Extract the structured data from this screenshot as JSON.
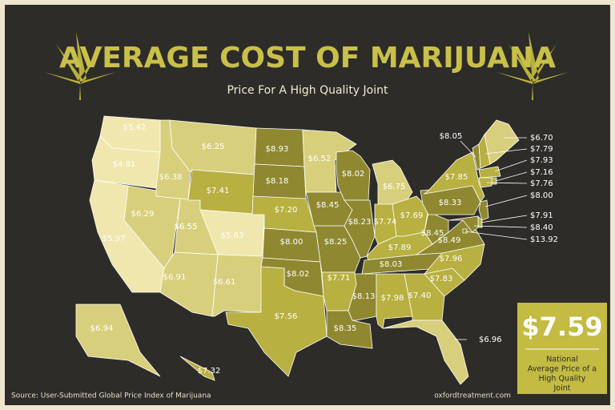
{
  "header": {
    "title": "AVERAGE COST OF MARIJUANA",
    "subtitle": "Price For A High Quality Joint"
  },
  "states": [
    {
      "price": "$5.42",
      "color": "#efe7ad"
    },
    {
      "price": "$4.91",
      "color": "#efe7ad"
    },
    {
      "price": "$5.97",
      "color": "#efe7ad"
    },
    {
      "price": "$6.38",
      "color": "#d8cf7c"
    },
    {
      "price": "$6.29",
      "color": "#d8cf7c"
    },
    {
      "price": "$6.55",
      "color": "#d8cf7c"
    },
    {
      "price": "$6.91",
      "color": "#d8cf7c"
    },
    {
      "price": "$6.25",
      "color": "#d8cf7c"
    },
    {
      "price": "$7.41",
      "color": "#b8b040"
    },
    {
      "price": "$5.63",
      "color": "#efe7ad"
    },
    {
      "price": "$6.61",
      "color": "#d8cf7c"
    },
    {
      "price": "$8.93",
      "color": "#8f8830"
    },
    {
      "price": "$8.18",
      "color": "#8f8830"
    },
    {
      "price": "$7.20",
      "color": "#b8b040"
    },
    {
      "price": "$8.00",
      "color": "#8f8830"
    },
    {
      "price": "$8.02",
      "color": "#8f8830"
    },
    {
      "price": "$7.56",
      "color": "#b8b040"
    },
    {
      "price": "$6.52",
      "color": "#d8cf7c"
    },
    {
      "price": "$8.45",
      "color": "#8f8830"
    },
    {
      "price": "$8.25",
      "color": "#8f8830"
    },
    {
      "price": "$7.71",
      "color": "#b8b040"
    },
    {
      "price": "$8.35",
      "color": "#8f8830"
    },
    {
      "price": "$8.02",
      "color": "#8f8830"
    },
    {
      "price": "$8.23",
      "color": "#8f8830"
    },
    {
      "price": "$6.75",
      "color": "#d8cf7c"
    },
    {
      "price": "$7.74",
      "color": "#b8b040"
    },
    {
      "price": "$7.69",
      "color": "#b8b040"
    },
    {
      "price": "$7.89",
      "color": "#b8b040"
    },
    {
      "price": "$8.03",
      "color": "#8f8830"
    },
    {
      "price": "$8.13",
      "color": "#8f8830"
    },
    {
      "price": "$7.98",
      "color": "#b8b040"
    },
    {
      "price": "$7.40",
      "color": "#b8b040"
    },
    {
      "price": "$6.96",
      "color": "#d8cf7c"
    },
    {
      "price": "$7.83",
      "color": "#b8b040"
    },
    {
      "price": "$7.96",
      "color": "#b8b040"
    },
    {
      "price": "$8.49",
      "color": "#8f8830"
    },
    {
      "price": "$8.45",
      "color": "#8f8830"
    },
    {
      "price": "$8.33",
      "color": "#8f8830"
    },
    {
      "price": "$7.85",
      "color": "#b8b040"
    },
    {
      "price": "$8.05",
      "color": "#8f8830"
    },
    {
      "price": "$6.70",
      "color": "#d8cf7c"
    },
    {
      "price": "$7.79",
      "color": "#b8b040"
    },
    {
      "price": "$7.93",
      "color": "#b8b040"
    },
    {
      "price": "$7.16",
      "color": "#b8b040"
    },
    {
      "price": "$7.76",
      "color": "#b8b040"
    },
    {
      "price": "$8.00",
      "color": "#8f8830"
    },
    {
      "price": "$7.91",
      "color": "#b8b040"
    },
    {
      "price": "$8.40",
      "color": "#8f8830"
    },
    {
      "price": "$13.92",
      "color": "#8f8830"
    },
    {
      "price": "$6.94",
      "color": "#d8cf7c"
    },
    {
      "price": "$7.32",
      "color": "#b8b040"
    }
  ],
  "national": {
    "price": "$7.59",
    "caption_lines": [
      "National",
      "Average Price of a",
      "High Quality",
      "Joint"
    ]
  },
  "footer": {
    "source": "Source: User-Submitted Global Price Index of Marijuana",
    "site": "oxfordtreatment.com"
  }
}
